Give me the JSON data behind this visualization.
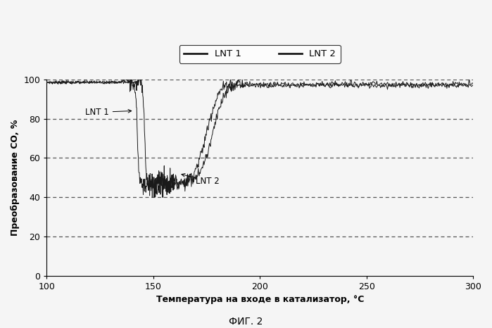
{
  "title": "ФИГ. 2",
  "xlabel": "Температура на входе в катализатор, °C",
  "ylabel": "Преобразование CO, %",
  "xlim": [
    100,
    300
  ],
  "ylim": [
    0,
    100
  ],
  "xticks": [
    100,
    150,
    200,
    250,
    300
  ],
  "yticks": [
    0,
    20,
    40,
    60,
    80,
    100
  ],
  "line_color": "#1a1a1a",
  "annotation_lnt1": "LNT 1",
  "annotation_lnt2": "LNT 2",
  "legend_labels": [
    "LNT 1",
    "LNT 2"
  ],
  "background_color": "#f5f5f5",
  "grid_color": "#555555",
  "lnt1_drop_start": 140,
  "lnt1_drop_end": 148,
  "lnt1_min": 47,
  "lnt1_recover_end": 185,
  "lnt2_drop_start": 143,
  "lnt2_drop_end": 153,
  "lnt2_min": 47,
  "lnt2_recover_end": 190
}
